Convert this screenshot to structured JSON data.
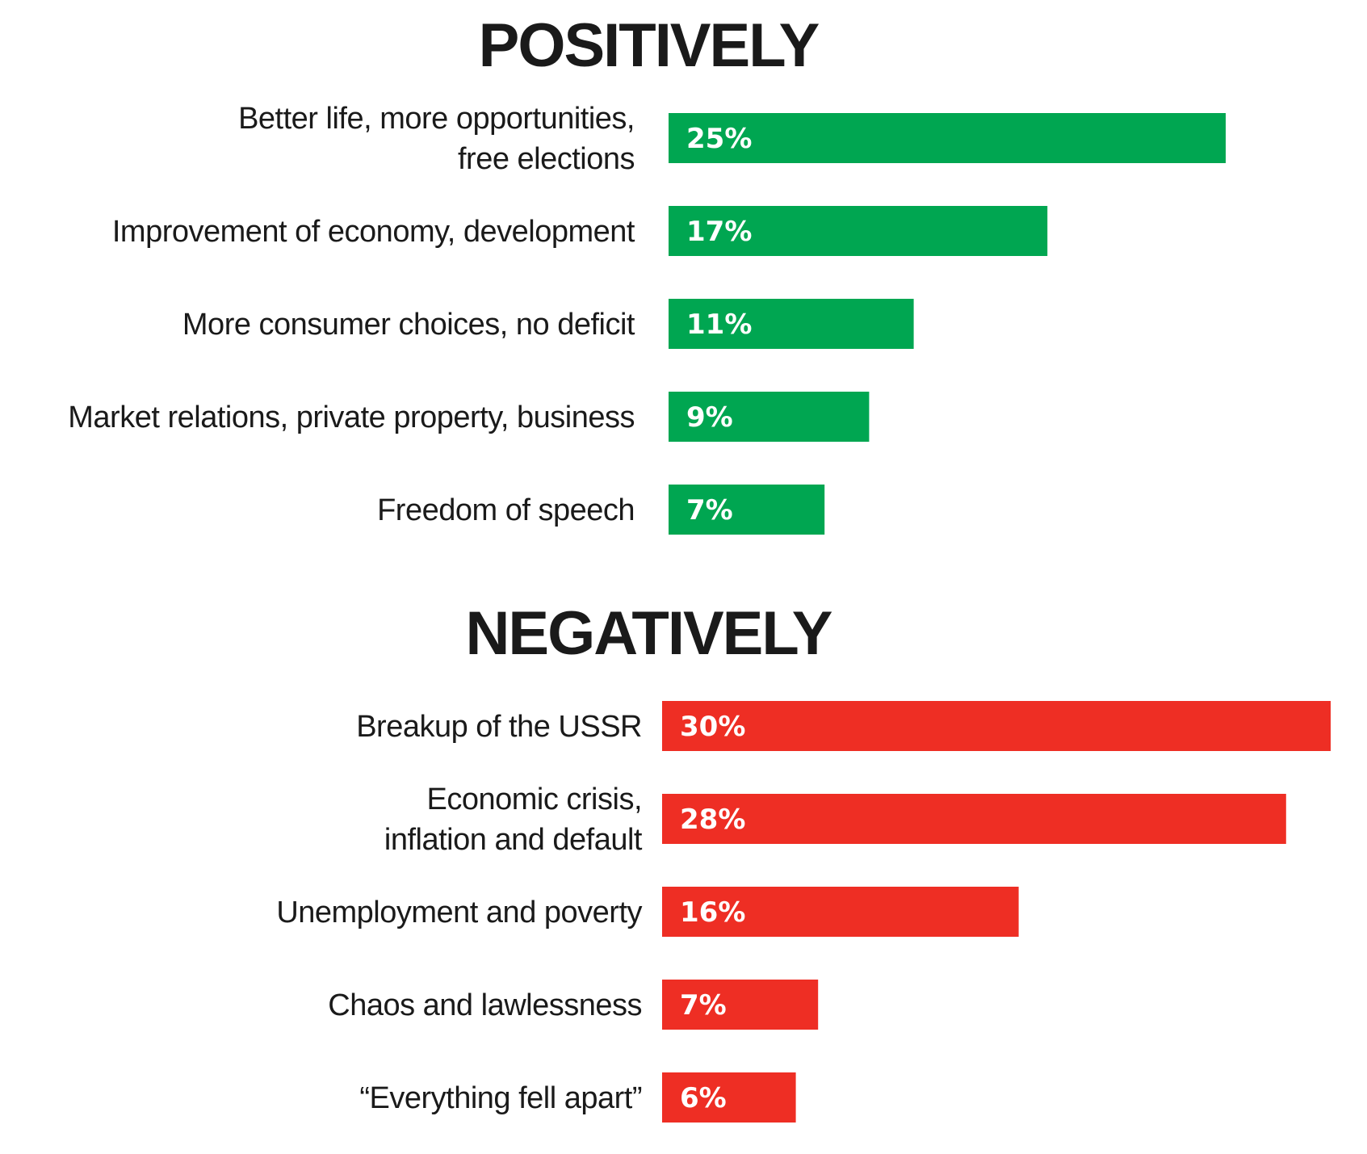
{
  "chart_data": [
    {
      "type": "bar",
      "orientation": "horizontal",
      "title": "POSITIVELY",
      "color": "#00a651",
      "unit": "%",
      "categories": [
        [
          "Better life, more opportunities,",
          "free elections"
        ],
        [
          "Improvement of economy, development"
        ],
        [
          "More consumer choices, no deficit"
        ],
        [
          "Market relations, private property, business"
        ],
        [
          "Freedom of speech"
        ]
      ],
      "values": [
        25,
        17,
        11,
        9,
        7
      ],
      "value_labels": [
        "25%",
        "17%",
        "11%",
        "9%",
        "7%"
      ]
    },
    {
      "type": "bar",
      "orientation": "horizontal",
      "title": "NEGATIVELY",
      "color": "#ee2e24",
      "unit": "%",
      "categories": [
        [
          "Breakup of the USSR"
        ],
        [
          "Economic crisis,",
          "inflation and default"
        ],
        [
          "Unemployment and poverty"
        ],
        [
          "Chaos and lawlessness"
        ],
        [
          "“Everything fell apart”"
        ]
      ],
      "values": [
        30,
        28,
        16,
        7,
        6
      ],
      "value_labels": [
        "30%",
        "28%",
        "16%",
        "7%",
        "6%"
      ]
    }
  ]
}
